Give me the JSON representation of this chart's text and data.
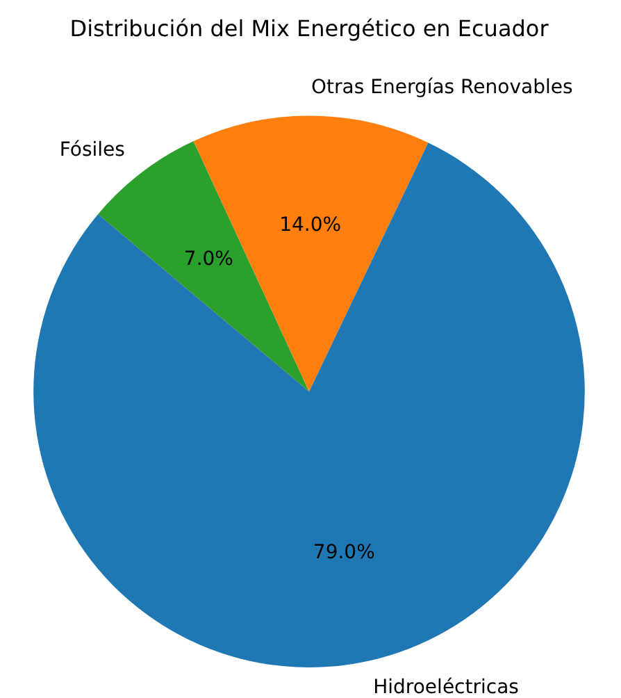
{
  "chart_data": {
    "type": "pie",
    "title": "Distribución del Mix Energético en Ecuador",
    "categories": [
      "Hidroeléctricas",
      "Otras Energías Renovables",
      "Fósiles"
    ],
    "values": [
      79,
      14,
      7
    ],
    "colors": [
      "#1f77b4",
      "#ff7f0e",
      "#2ca02c"
    ],
    "value_labels": [
      "79.0%",
      "14.0%",
      "7.0%"
    ],
    "legend": false
  }
}
